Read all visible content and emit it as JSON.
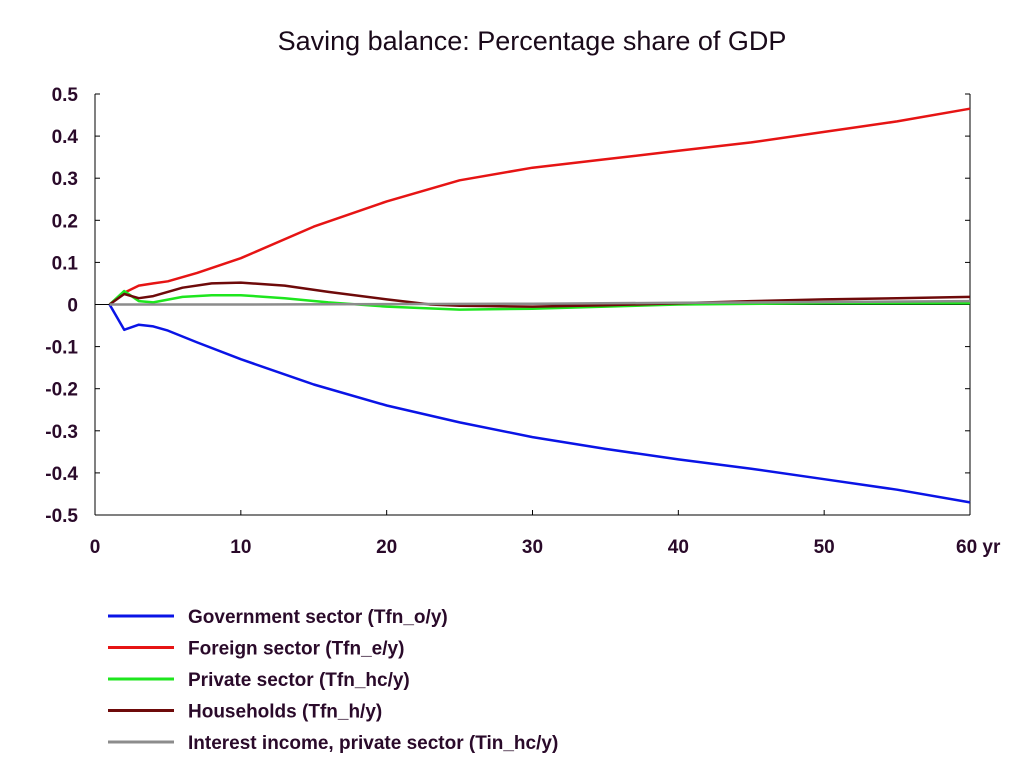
{
  "chart_data": {
    "type": "line",
    "title": "Saving balance: Percentage share of GDP",
    "xlabel": "",
    "ylabel": "",
    "x_unit": "yr",
    "xlim": [
      0,
      60
    ],
    "ylim": [
      -0.5,
      0.5
    ],
    "x_ticks": [
      "0",
      "10",
      "20",
      "30",
      "40",
      "50",
      "60 yr"
    ],
    "y_ticks": [
      "0.5",
      "0.4",
      "0.3",
      "0.2",
      "0.1",
      "0",
      "-0.1",
      "-0.2",
      "-0.3",
      "-0.4",
      "-0.5"
    ],
    "grid": false,
    "legend_position": "bottom",
    "series": [
      {
        "name": "Government sector (Tfn_o/y)",
        "color": "#0a14e6",
        "points": [
          [
            1,
            0
          ],
          [
            2,
            -0.06
          ],
          [
            3,
            -0.048
          ],
          [
            4,
            -0.052
          ],
          [
            5,
            -0.062
          ],
          [
            7,
            -0.09
          ],
          [
            10,
            -0.13
          ],
          [
            15,
            -0.19
          ],
          [
            20,
            -0.24
          ],
          [
            25,
            -0.28
          ],
          [
            30,
            -0.315
          ],
          [
            35,
            -0.343
          ],
          [
            40,
            -0.368
          ],
          [
            45,
            -0.39
          ],
          [
            50,
            -0.415
          ],
          [
            55,
            -0.44
          ],
          [
            60,
            -0.47
          ]
        ]
      },
      {
        "name": "Foreign sector (Tfn_e/y)",
        "color": "#e61414",
        "points": [
          [
            1,
            0
          ],
          [
            2,
            0.028
          ],
          [
            3,
            0.045
          ],
          [
            4,
            0.05
          ],
          [
            5,
            0.055
          ],
          [
            7,
            0.075
          ],
          [
            10,
            0.11
          ],
          [
            15,
            0.185
          ],
          [
            20,
            0.245
          ],
          [
            25,
            0.295
          ],
          [
            30,
            0.325
          ],
          [
            35,
            0.345
          ],
          [
            40,
            0.365
          ],
          [
            45,
            0.385
          ],
          [
            50,
            0.41
          ],
          [
            55,
            0.435
          ],
          [
            60,
            0.465
          ]
        ]
      },
      {
        "name": "Private sector (Tfn_hc/y)",
        "color": "#1ee61e",
        "points": [
          [
            1,
            0
          ],
          [
            2,
            0.032
          ],
          [
            3,
            0.008
          ],
          [
            4,
            0.005
          ],
          [
            6,
            0.018
          ],
          [
            8,
            0.022
          ],
          [
            10,
            0.022
          ],
          [
            13,
            0.015
          ],
          [
            16,
            0.005
          ],
          [
            20,
            -0.005
          ],
          [
            25,
            -0.012
          ],
          [
            30,
            -0.01
          ],
          [
            35,
            -0.005
          ],
          [
            40,
            0.0
          ],
          [
            50,
            0.003
          ],
          [
            60,
            0.003
          ]
        ]
      },
      {
        "name": "Households (Tfn_h/y)",
        "color": "#6e0a0a",
        "points": [
          [
            1,
            0
          ],
          [
            2,
            0.025
          ],
          [
            3,
            0.015
          ],
          [
            4,
            0.02
          ],
          [
            6,
            0.04
          ],
          [
            8,
            0.05
          ],
          [
            10,
            0.052
          ],
          [
            13,
            0.045
          ],
          [
            16,
            0.03
          ],
          [
            20,
            0.012
          ],
          [
            23,
            0.0
          ],
          [
            25,
            -0.003
          ],
          [
            30,
            -0.005
          ],
          [
            35,
            -0.002
          ],
          [
            40,
            0.003
          ],
          [
            45,
            0.008
          ],
          [
            50,
            0.012
          ],
          [
            55,
            0.015
          ],
          [
            60,
            0.018
          ]
        ]
      },
      {
        "name": "Interest income, private sector (Tin_hc/y)",
        "color": "#8c8c8c",
        "points": [
          [
            1,
            0
          ],
          [
            10,
            0.0
          ],
          [
            20,
            0.001
          ],
          [
            30,
            0.002
          ],
          [
            40,
            0.004
          ],
          [
            50,
            0.006
          ],
          [
            60,
            0.008
          ]
        ]
      }
    ]
  }
}
